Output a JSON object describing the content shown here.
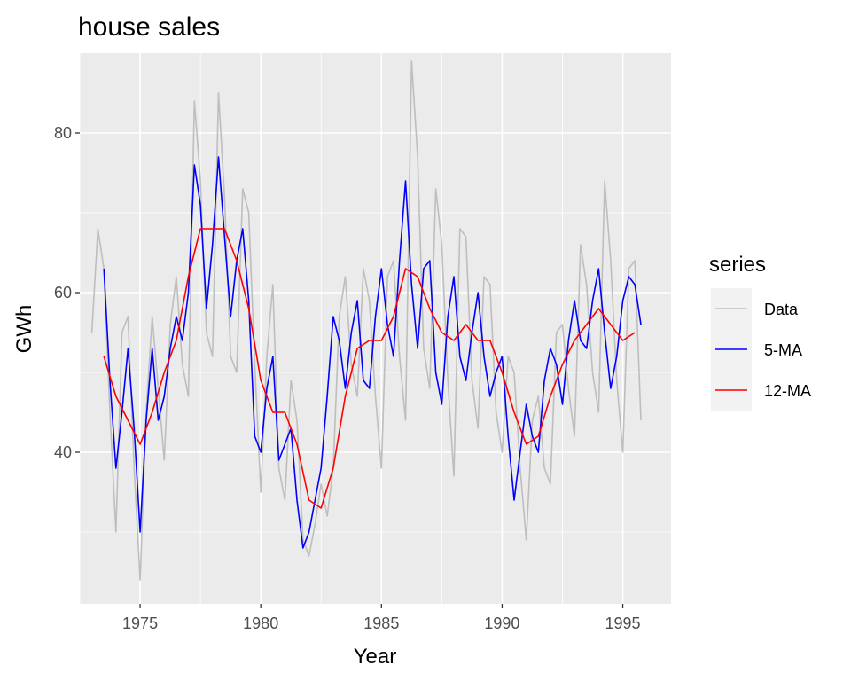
{
  "chart_data": {
    "type": "line",
    "title": "house sales",
    "xlabel": "Year",
    "ylabel": "GWh",
    "xlim": [
      1972.5,
      1997.0
    ],
    "ylim": [
      21,
      90
    ],
    "x_ticks": [
      1975,
      1980,
      1985,
      1990,
      1995
    ],
    "x_tick_labels": [
      "1975",
      "1980",
      "1985",
      "1990",
      "1995"
    ],
    "x_minor_ticks": [
      1972.5,
      1977.5,
      1982.5,
      1987.5,
      1992.5
    ],
    "y_ticks": [
      40,
      60,
      80
    ],
    "y_tick_labels": [
      "40",
      "60",
      "80"
    ],
    "y_minor_ticks": [
      30,
      50,
      70
    ],
    "grid": true,
    "legend": {
      "title": "series",
      "position": "right"
    },
    "colors": {
      "Data": "#bebebe",
      "5-MA": "#0000ff",
      "12-MA": "#ff0000",
      "panel": "#ebebeb",
      "grid": "#ffffff"
    },
    "series": [
      {
        "name": "Data",
        "x": [
          1973.0,
          1973.25,
          1973.5,
          1973.75,
          1974.0,
          1974.25,
          1974.5,
          1974.75,
          1975.0,
          1975.25,
          1975.5,
          1975.75,
          1976.0,
          1976.25,
          1976.5,
          1976.75,
          1977.0,
          1977.25,
          1977.5,
          1977.75,
          1978.0,
          1978.25,
          1978.5,
          1978.75,
          1979.0,
          1979.25,
          1979.5,
          1979.75,
          1980.0,
          1980.25,
          1980.5,
          1980.75,
          1981.0,
          1981.25,
          1981.5,
          1981.75,
          1982.0,
          1982.25,
          1982.5,
          1982.75,
          1983.0,
          1983.25,
          1983.5,
          1983.75,
          1984.0,
          1984.25,
          1984.5,
          1984.75,
          1985.0,
          1985.25,
          1985.5,
          1985.75,
          1986.0,
          1986.25,
          1986.5,
          1986.75,
          1987.0,
          1987.25,
          1987.5,
          1987.75,
          1988.0,
          1988.25,
          1988.5,
          1988.75,
          1989.0,
          1989.25,
          1989.5,
          1989.75,
          1990.0,
          1990.25,
          1990.5,
          1990.75,
          1991.0,
          1991.25,
          1991.5,
          1991.75,
          1992.0,
          1992.25,
          1992.5,
          1992.75,
          1993.0,
          1993.25,
          1993.5,
          1993.75,
          1994.0,
          1994.25,
          1994.5,
          1994.75,
          1995.0,
          1995.25,
          1995.5,
          1995.75
        ],
        "values": [
          55,
          68,
          63,
          45,
          30,
          55,
          57,
          38,
          24,
          45,
          57,
          48,
          39,
          56,
          62,
          51,
          47,
          84,
          74,
          55,
          52,
          85,
          72,
          52,
          50,
          73,
          70,
          51,
          35,
          52,
          61,
          38,
          34,
          49,
          44,
          29,
          27,
          31,
          36,
          32,
          38,
          57,
          62,
          51,
          47,
          63,
          59,
          47,
          38,
          62,
          64,
          52,
          44,
          89,
          77,
          53,
          48,
          73,
          66,
          49,
          37,
          68,
          67,
          49,
          43,
          62,
          61,
          45,
          40,
          52,
          50,
          38,
          29,
          44,
          47,
          38,
          36,
          55,
          56,
          48,
          42,
          66,
          61,
          50,
          45,
          74,
          64,
          49,
          40,
          63,
          64,
          44
        ]
      },
      {
        "name": "5-MA",
        "x": [
          1973.5,
          1973.75,
          1974.0,
          1974.25,
          1974.5,
          1974.75,
          1975.0,
          1975.25,
          1975.5,
          1975.75,
          1976.0,
          1976.25,
          1976.5,
          1976.75,
          1977.0,
          1977.25,
          1977.5,
          1977.75,
          1978.0,
          1978.25,
          1978.5,
          1978.75,
          1979.0,
          1979.25,
          1979.5,
          1979.75,
          1980.0,
          1980.25,
          1980.5,
          1980.75,
          1981.0,
          1981.25,
          1981.5,
          1981.75,
          1982.0,
          1982.25,
          1982.5,
          1982.75,
          1983.0,
          1983.25,
          1983.5,
          1983.75,
          1984.0,
          1984.25,
          1984.5,
          1984.75,
          1985.0,
          1985.25,
          1985.5,
          1985.75,
          1986.0,
          1986.25,
          1986.5,
          1986.75,
          1987.0,
          1987.25,
          1987.5,
          1987.75,
          1988.0,
          1988.25,
          1988.5,
          1988.75,
          1989.0,
          1989.25,
          1989.5,
          1989.75,
          1990.0,
          1990.25,
          1990.5,
          1990.75,
          1991.0,
          1991.25,
          1991.5,
          1991.75,
          1992.0,
          1992.25,
          1992.5,
          1992.75,
          1993.0,
          1993.25,
          1993.5,
          1993.75,
          1994.0,
          1994.25,
          1994.5,
          1994.75,
          1995.0,
          1995.25,
          1995.5,
          1995.75
        ],
        "values": [
          63,
          49,
          38,
          45,
          53,
          43,
          30,
          44,
          53,
          44,
          47,
          53,
          57,
          54,
          60,
          76,
          71,
          58,
          66,
          77,
          67,
          57,
          64,
          68,
          59,
          42,
          40,
          48,
          52,
          39,
          41,
          43,
          34,
          28,
          30,
          34,
          38,
          47,
          57,
          54,
          48,
          55,
          59,
          49,
          48,
          57,
          63,
          56,
          52,
          64,
          74,
          61,
          53,
          63,
          64,
          50,
          46,
          57,
          62,
          52,
          49,
          55,
          60,
          52,
          47,
          50,
          52,
          42,
          34,
          40,
          46,
          42,
          40,
          49,
          53,
          51,
          46,
          54,
          59,
          54,
          53,
          59,
          63,
          55,
          48,
          52,
          59,
          62,
          61,
          56
        ]
      },
      {
        "name": "12-MA",
        "x": [
          1973.5,
          1974.0,
          1974.5,
          1975.0,
          1975.5,
          1976.0,
          1976.5,
          1977.0,
          1977.5,
          1978.0,
          1978.5,
          1979.0,
          1979.5,
          1980.0,
          1980.5,
          1981.0,
          1981.5,
          1982.0,
          1982.5,
          1983.0,
          1983.5,
          1984.0,
          1984.5,
          1985.0,
          1985.5,
          1986.0,
          1986.5,
          1987.0,
          1987.5,
          1988.0,
          1988.5,
          1989.0,
          1989.5,
          1990.0,
          1990.5,
          1991.0,
          1991.5,
          1992.0,
          1992.5,
          1993.0,
          1993.5,
          1994.0,
          1994.5,
          1995.0,
          1995.5
        ],
        "values": [
          52,
          47,
          44,
          41,
          45,
          50,
          54,
          62,
          68,
          68,
          68,
          64,
          58,
          49,
          45,
          45,
          41,
          34,
          33,
          38,
          47,
          53,
          54,
          54,
          57,
          63,
          62,
          58,
          55,
          54,
          56,
          54,
          54,
          50,
          45,
          41,
          42,
          47,
          51,
          54,
          56,
          58,
          56,
          54,
          55
        ]
      }
    ]
  }
}
